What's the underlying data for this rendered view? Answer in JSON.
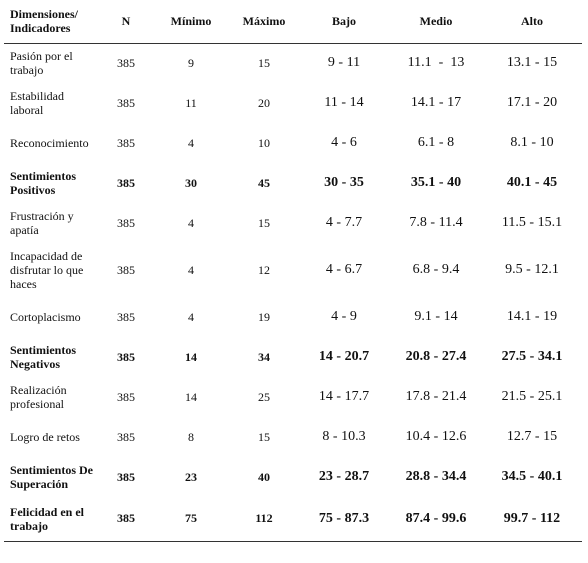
{
  "headers": {
    "dimension": "Dimensiones/\nIndicadores",
    "n": "N",
    "min": "Mínimo",
    "max": "Máximo",
    "bajo": "Bajo",
    "medio": "Medio",
    "alto": "Alto"
  },
  "rows": [
    {
      "label": "Pasión por el trabajo",
      "n": "385",
      "min": "9",
      "max": "15",
      "bajo": "9 - 11",
      "medio": "11.1  -  13",
      "alto": "13.1 - 15"
    },
    {
      "label": "Estabilidad laboral",
      "n": "385",
      "min": "11",
      "max": "20",
      "bajo": "11 - 14",
      "medio": "14.1 - 17",
      "alto": "17.1 - 20"
    },
    {
      "label": "Reconocimiento",
      "n": "385",
      "min": "4",
      "max": "10",
      "bajo": "4 - 6",
      "medio": "6.1 - 8",
      "alto": "8.1 - 10"
    },
    {
      "label": "Sentimientos Positivos",
      "n": "385",
      "min": "30",
      "max": "45",
      "bajo": "30 - 35",
      "medio": "35.1 - 40",
      "alto": "40.1 - 45"
    },
    {
      "label": "Frustración y apatía",
      "n": "385",
      "min": "4",
      "max": "15",
      "bajo": "4 - 7.7",
      "medio": "7.8 - 11.4",
      "alto": "11.5 - 15.1"
    },
    {
      "label": "Incapacidad de disfrutar lo que haces",
      "n": "385",
      "min": "4",
      "max": "12",
      "bajo": "4 - 6.7",
      "medio": "6.8 - 9.4",
      "alto": "9.5 - 12.1"
    },
    {
      "label": "Cortoplacismo",
      "n": "385",
      "min": "4",
      "max": "19",
      "bajo": "4 - 9",
      "medio": "9.1 - 14",
      "alto": "14.1 - 19"
    },
    {
      "label": "Sentimientos Negativos",
      "n": "385",
      "min": "14",
      "max": "34",
      "bajo": "14 - 20.7",
      "medio": "20.8 - 27.4",
      "alto": "27.5 - 34.1"
    },
    {
      "label": "Realización profesional",
      "n": "385",
      "min": "14",
      "max": "25",
      "bajo": "14 - 17.7",
      "medio": "17.8 - 21.4",
      "alto": "21.5 - 25.1"
    },
    {
      "label": "Logro de retos",
      "n": "385",
      "min": "8",
      "max": "15",
      "bajo": "8 - 10.3",
      "medio": "10.4 - 12.6",
      "alto": "12.7 - 15"
    },
    {
      "label": "Sentimientos De Superación",
      "n": "385",
      "min": "23",
      "max": "40",
      "bajo": "23 - 28.7",
      "medio": "28.8 - 34.4",
      "alto": "34.5 - 40.1"
    },
    {
      "label": "Felicidad en el trabajo",
      "n": "385",
      "min": "75",
      "max": "112",
      "bajo": "75 - 87.3",
      "medio": "87.4 - 99.6",
      "alto": "99.7 - 112"
    }
  ]
}
